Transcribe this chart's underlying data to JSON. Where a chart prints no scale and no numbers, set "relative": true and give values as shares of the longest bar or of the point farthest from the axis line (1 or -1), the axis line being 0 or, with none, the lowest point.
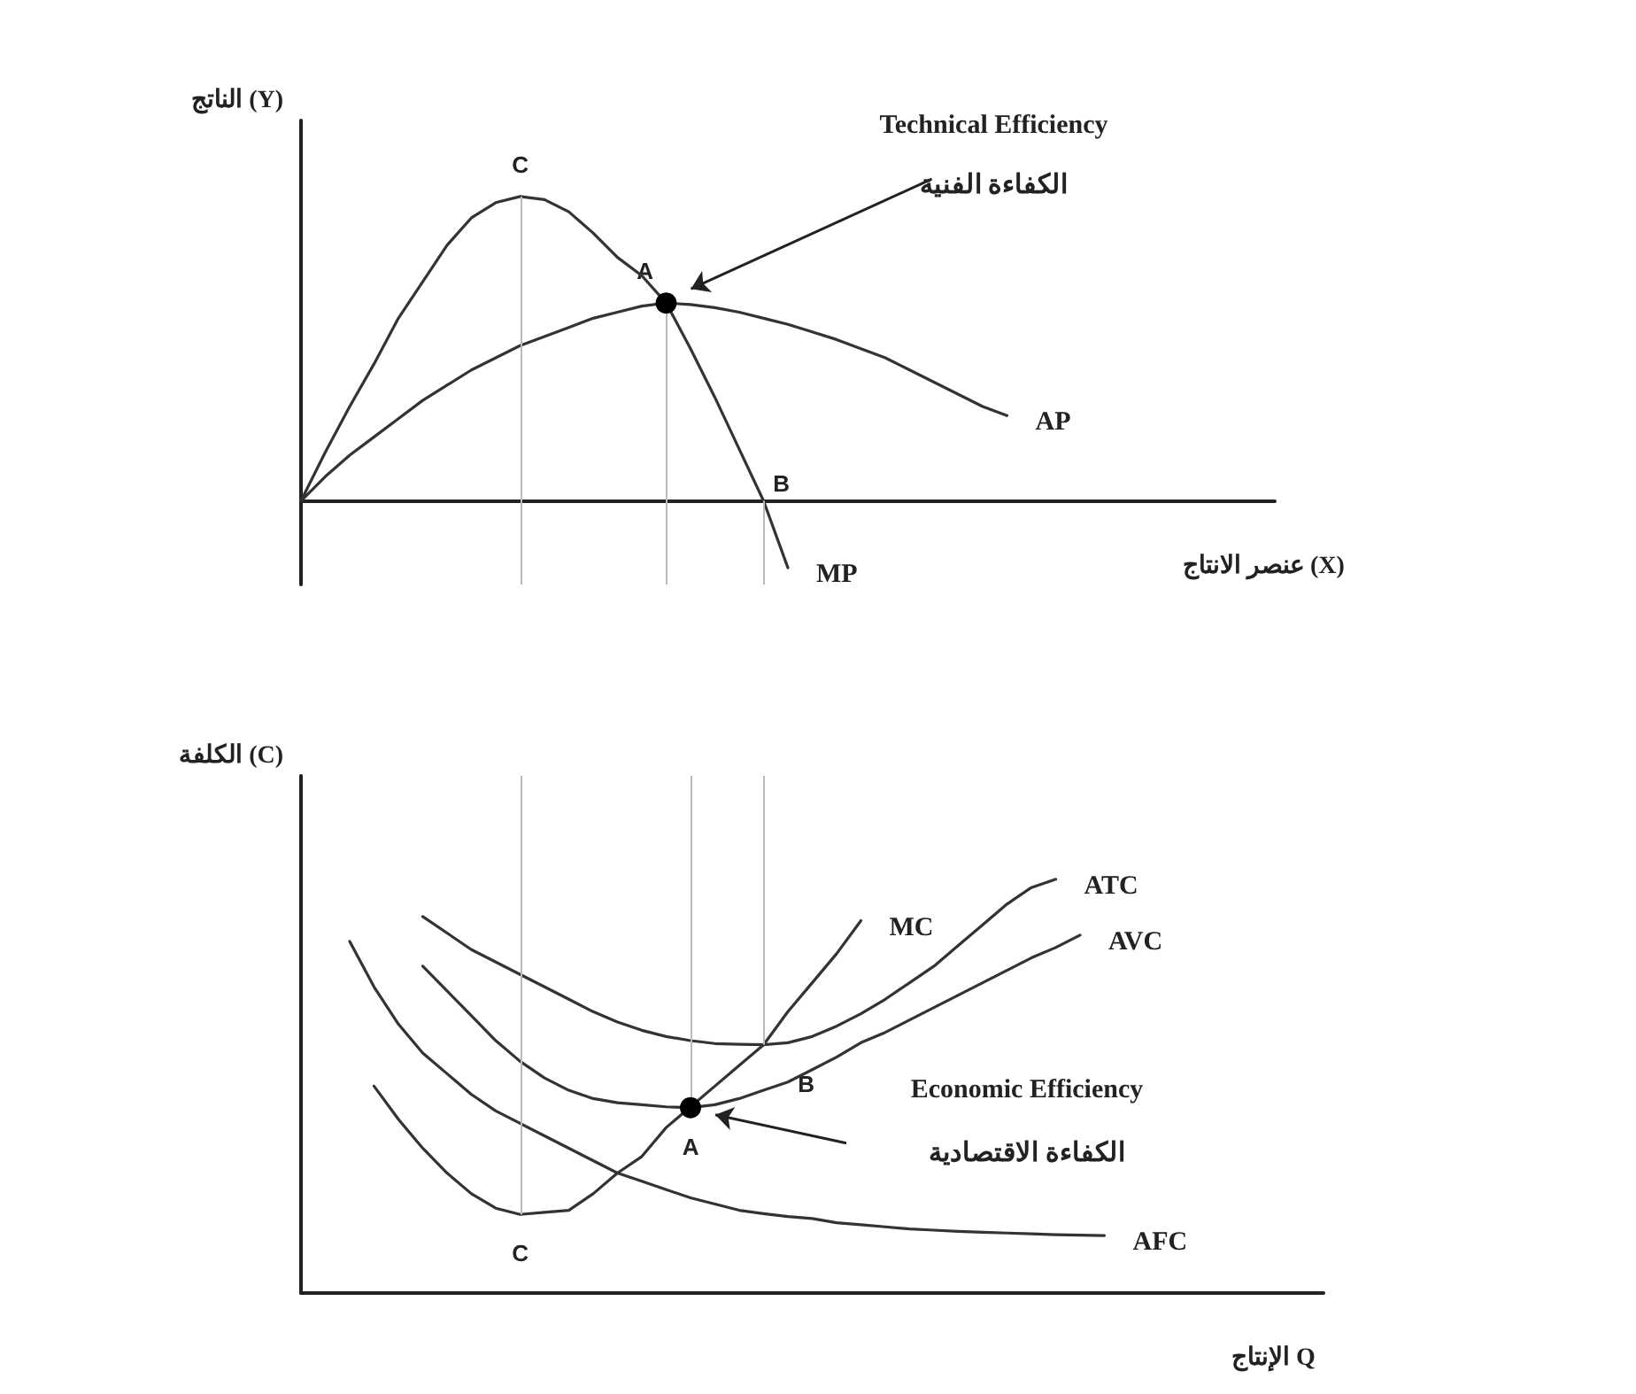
{
  "chart_data": [
    {
      "type": "line",
      "relative": true,
      "ylabel": "الناتج (Y)",
      "xlabel": "عنصر الانتاج (X)",
      "grid": false,
      "legend": false,
      "line_style": "solid",
      "categories": [
        null,
        null,
        null,
        null,
        null,
        null,
        null,
        null,
        null,
        null,
        null,
        null,
        null,
        null,
        null,
        null,
        null,
        null,
        null,
        null,
        null,
        null,
        null,
        null,
        null,
        null,
        null,
        null,
        null,
        null,
        null,
        null,
        null,
        null,
        null,
        null,
        null,
        null,
        null,
        null,
        null
      ],
      "series": [
        {
          "name": "MP",
          "color": "#333333",
          "values": [
            0,
            0.16,
            0.31,
            0.45,
            0.6,
            0.72,
            0.84,
            0.93,
            0.98,
            1,
            0.99,
            0.95,
            0.88,
            0.8,
            0.74,
            0.65,
            0.5,
            0.34,
            0.17,
            0,
            -0.22,
            null,
            null,
            null,
            null,
            null,
            null,
            null,
            null,
            null,
            null,
            null,
            null,
            null,
            null,
            null,
            null,
            null,
            null,
            null,
            null
          ]
        },
        {
          "name": "AP",
          "color": "#333333",
          "values": [
            0,
            0.08,
            0.15,
            0.21,
            0.27,
            0.33,
            0.38,
            0.43,
            0.47,
            0.51,
            0.54,
            0.57,
            0.6,
            0.62,
            0.64,
            0.65,
            0.645,
            0.635,
            0.62,
            0.6,
            0.58,
            0.555,
            0.53,
            0.5,
            0.47,
            0.43,
            0.39,
            0.35,
            0.31,
            0.28,
            null,
            null,
            null,
            null,
            null,
            null,
            null,
            null,
            null,
            null,
            null
          ]
        }
      ],
      "annotations": [
        "Technical Efficiency",
        "الكفاءة الفنية",
        {
          "text": "C",
          "y": 1
        },
        {
          "text": "A",
          "y": 0.65
        },
        "B"
      ]
    },
    {
      "type": "line",
      "relative": true,
      "ylabel": "الكلفة (C)",
      "xlabel": "الإنتاج Q",
      "grid": false,
      "legend": false,
      "line_style": "solid",
      "categories": [
        null,
        null,
        null,
        null,
        null,
        null,
        null,
        null,
        null,
        null,
        null,
        null,
        null,
        null,
        null,
        null,
        null,
        null,
        null,
        null,
        null,
        null,
        null,
        null,
        null,
        null,
        null,
        null,
        null,
        null,
        null,
        null,
        null,
        null,
        null,
        null,
        null,
        null,
        null,
        null,
        null,
        null,
        null
      ],
      "series": [
        {
          "name": "MC",
          "color": "#333333",
          "values": [
            null,
            null,
            null,
            0.5,
            0.42,
            0.35,
            0.29,
            0.24,
            0.205,
            0.19,
            0.195,
            0.2,
            0.24,
            0.29,
            0.33,
            0.4,
            0.45,
            0.5,
            0.55,
            0.6,
            0.68,
            0.75,
            0.82,
            0.9,
            null,
            null,
            null,
            null,
            null,
            null,
            null,
            null,
            null,
            null,
            null,
            null,
            null,
            null,
            null,
            null,
            null,
            null,
            null
          ]
        },
        {
          "name": "ATC",
          "color": "#333333",
          "values": [
            null,
            null,
            null,
            null,
            null,
            0.91,
            0.87,
            0.83,
            0.8,
            0.77,
            0.74,
            0.71,
            0.68,
            0.655,
            0.635,
            0.62,
            0.61,
            0.603,
            0.601,
            0.6,
            0.605,
            0.62,
            0.645,
            0.675,
            0.71,
            0.75,
            0.79,
            0.84,
            0.89,
            0.94,
            0.98,
            1,
            null,
            null,
            null,
            null,
            null,
            null,
            null,
            null,
            null,
            null,
            null
          ]
        },
        {
          "name": "AVC",
          "color": "#333333",
          "values": [
            null,
            null,
            null,
            null,
            null,
            0.79,
            0.73,
            0.67,
            0.61,
            0.56,
            0.52,
            0.49,
            0.47,
            0.46,
            0.455,
            0.45,
            0.448,
            0.455,
            0.47,
            0.49,
            0.51,
            0.54,
            0.57,
            0.605,
            0.63,
            0.66,
            0.69,
            0.72,
            0.75,
            0.78,
            0.81,
            0.835,
            0.865,
            null,
            null,
            null,
            null,
            null,
            null,
            null,
            null,
            null,
            null
          ]
        },
        {
          "name": "AFC",
          "color": "#333333",
          "values": [
            null,
            null,
            0.85,
            0.74,
            0.65,
            0.58,
            0.53,
            0.48,
            0.44,
            0.41,
            0.38,
            0.35,
            0.32,
            0.29,
            0.27,
            0.25,
            0.23,
            0.215,
            0.2,
            0.192,
            0.185,
            0.18,
            0.17,
            0.165,
            0.16,
            0.155,
            0.152,
            0.149,
            0.147,
            0.145,
            0.143,
            0.141,
            0.14,
            0.139,
            null,
            null,
            null,
            null,
            null,
            null,
            null,
            null,
            null
          ]
        }
      ],
      "annotations": [
        "Economic Efficiency",
        "الكفاءة الاقتصادية",
        {
          "text": "C",
          "y": 0.19
        },
        {
          "text": "A",
          "y": 0.448
        },
        {
          "text": "B",
          "y": 0.6
        }
      ]
    }
  ]
}
